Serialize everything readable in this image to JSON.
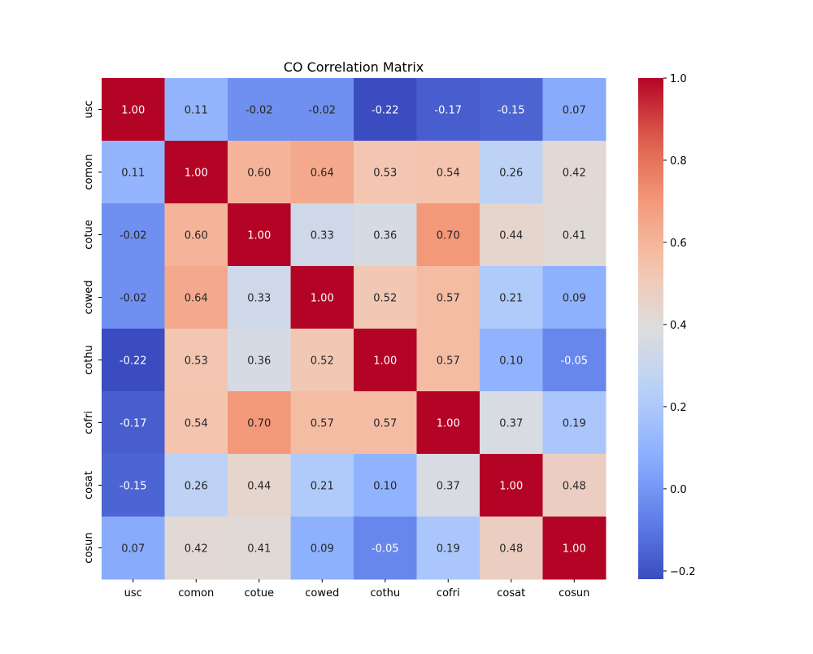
{
  "chart_data": {
    "type": "heatmap",
    "title": "CO Correlation Matrix",
    "xlabel": "",
    "ylabel": "",
    "x_labels": [
      "usc",
      "comon",
      "cotue",
      "cowed",
      "cothu",
      "cofri",
      "cosat",
      "cosun"
    ],
    "y_labels": [
      "usc",
      "comon",
      "cotue",
      "cowed",
      "cothu",
      "cofri",
      "cosat",
      "cosun"
    ],
    "values": [
      [
        1.0,
        0.11,
        -0.02,
        -0.02,
        -0.22,
        -0.17,
        -0.15,
        0.07
      ],
      [
        0.11,
        1.0,
        0.6,
        0.64,
        0.53,
        0.54,
        0.26,
        0.42
      ],
      [
        -0.02,
        0.6,
        1.0,
        0.33,
        0.36,
        0.7,
        0.44,
        0.41
      ],
      [
        -0.02,
        0.64,
        0.33,
        1.0,
        0.52,
        0.57,
        0.21,
        0.09
      ],
      [
        -0.22,
        0.53,
        0.36,
        0.52,
        1.0,
        0.57,
        0.1,
        -0.05
      ],
      [
        -0.17,
        0.54,
        0.7,
        0.57,
        0.57,
        1.0,
        0.37,
        0.19
      ],
      [
        -0.15,
        0.26,
        0.44,
        0.21,
        0.1,
        0.37,
        1.0,
        0.48
      ],
      [
        0.07,
        0.42,
        0.41,
        0.09,
        -0.05,
        0.19,
        0.48,
        1.0
      ]
    ],
    "value_format": "0.00",
    "colormap": "coolwarm",
    "colorbar": {
      "range": [
        -0.22,
        1.0
      ],
      "ticks": [
        -0.2,
        0.0,
        0.2,
        0.4,
        0.6,
        0.8,
        1.0
      ],
      "tick_labels": [
        "−0.2",
        "0.0",
        "0.2",
        "0.4",
        "0.6",
        "0.8",
        "1.0"
      ]
    },
    "grid": false
  }
}
